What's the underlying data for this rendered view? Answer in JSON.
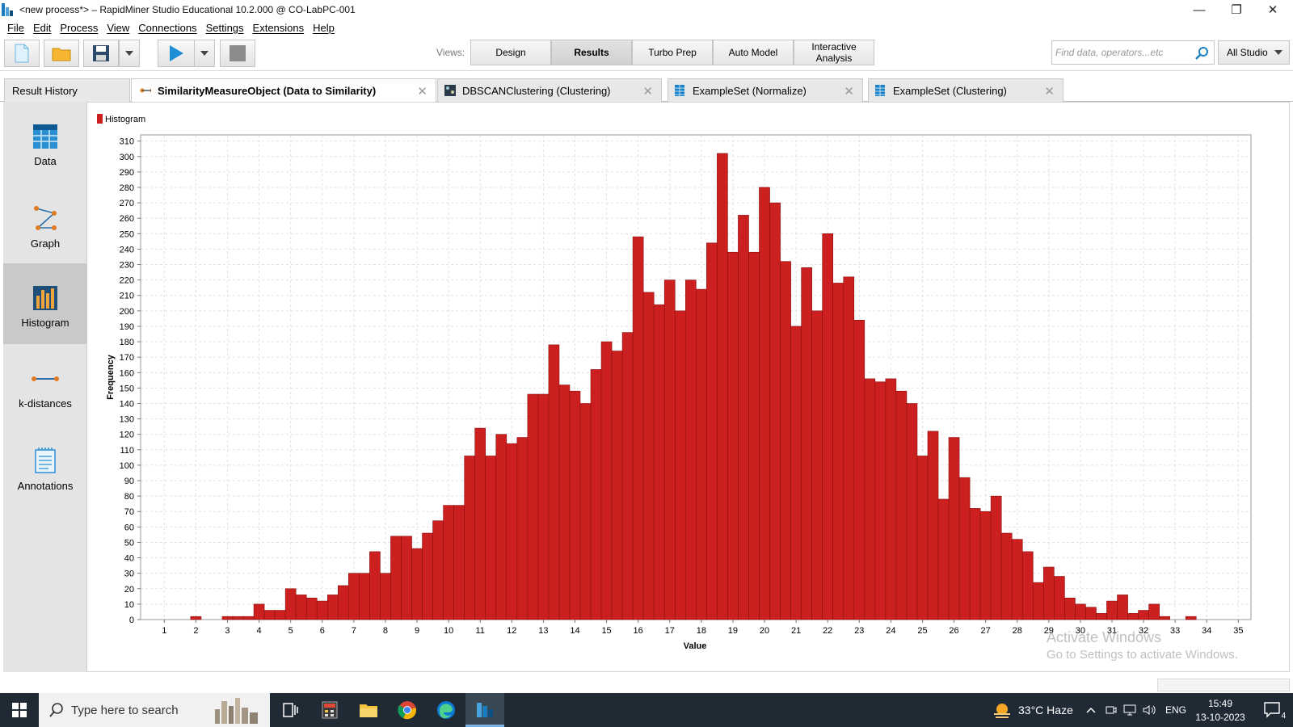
{
  "window": {
    "title": "<new process*> – RapidMiner Studio Educational 10.2.000 @ CO-LabPC-001",
    "minimize": "—",
    "maximize": "❐",
    "close": "✕"
  },
  "menu": [
    "File",
    "Edit",
    "Process",
    "View",
    "Connections",
    "Settings",
    "Extensions",
    "Help"
  ],
  "toolbar": {
    "views_label": "Views:",
    "views": [
      "Design",
      "Results",
      "Turbo Prep",
      "Auto Model",
      "Interactive Analysis"
    ],
    "active_view": "Results",
    "search_placeholder": "Find data, operators...etc",
    "studio_dropdown": "All Studio"
  },
  "tabs": [
    {
      "label": "Result History",
      "active": false,
      "icon": "none"
    },
    {
      "label": "SimilarityMeasureObject (Data to Similarity)",
      "active": true,
      "icon": "similarity-icon"
    },
    {
      "label": "DBSCANClustering (Clustering)",
      "active": false,
      "icon": "clustering-icon"
    },
    {
      "label": "ExampleSet (Normalize)",
      "active": false,
      "icon": "table-icon"
    },
    {
      "label": "ExampleSet (Clustering)",
      "active": false,
      "icon": "table-icon"
    }
  ],
  "side_panel": [
    {
      "label": "Data",
      "icon": "table-icon"
    },
    {
      "label": "Graph",
      "icon": "graph-icon"
    },
    {
      "label": "Histogram",
      "icon": "histogram-icon",
      "active": true
    },
    {
      "label": "k-distances",
      "icon": "k-distances-icon"
    },
    {
      "label": "Annotations",
      "icon": "annotations-icon"
    }
  ],
  "chart_data": {
    "type": "bar",
    "legend": "Histogram",
    "legend_position": "top-left",
    "xlabel": "Value",
    "ylabel": "Frequency",
    "xlim": [
      0.25,
      35.4
    ],
    "ylim": [
      0,
      314
    ],
    "y_ticks": [
      0,
      10,
      20,
      30,
      40,
      50,
      60,
      70,
      80,
      90,
      100,
      110,
      120,
      130,
      140,
      150,
      160,
      170,
      180,
      190,
      200,
      210,
      220,
      230,
      240,
      250,
      260,
      270,
      280,
      290,
      300,
      310
    ],
    "x_ticks": [
      1,
      2,
      3,
      4,
      5,
      6,
      7,
      8,
      9,
      10,
      11,
      12,
      13,
      14,
      15,
      16,
      17,
      18,
      19,
      20,
      21,
      22,
      23,
      24,
      25,
      26,
      27,
      28,
      29,
      30,
      31,
      32,
      33,
      34,
      35
    ],
    "grid": true,
    "color": "#cc1f1f",
    "bin_width": 0.3333,
    "bin_starts": [
      1.833,
      2.833,
      3.167,
      3.5,
      3.833,
      4.167,
      4.5,
      4.833,
      5.167,
      5.5,
      5.833,
      6.167,
      6.5,
      6.833,
      7.167,
      7.5,
      7.833,
      8.167,
      8.5,
      8.833,
      9.167,
      9.5,
      9.833,
      10.167,
      10.5,
      10.833,
      11.167,
      11.5,
      11.833,
      12.167,
      12.5,
      12.833,
      13.167,
      13.5,
      13.833,
      14.167,
      14.5,
      14.833,
      15.167,
      15.5,
      15.833,
      16.167,
      16.5,
      16.833,
      17.167,
      17.5,
      17.833,
      18.167,
      18.5,
      18.833,
      19.167,
      19.5,
      19.833,
      20.167,
      20.5,
      20.833,
      21.167,
      21.5,
      21.833,
      22.167,
      22.5,
      22.833,
      23.167,
      23.5,
      23.833,
      24.167,
      24.5,
      24.833,
      25.167,
      25.5,
      25.833,
      26.167,
      26.5,
      26.833,
      27.167,
      27.5,
      27.833,
      28.167,
      28.5,
      28.833,
      29.167,
      29.5,
      29.833,
      30.167,
      30.5,
      30.833,
      31.167,
      31.5,
      31.833,
      32.167,
      32.5,
      33.333
    ],
    "values": [
      2,
      2,
      2,
      2,
      10,
      6,
      6,
      20,
      16,
      14,
      12,
      16,
      22,
      30,
      30,
      44,
      30,
      54,
      54,
      46,
      56,
      64,
      74,
      74,
      106,
      124,
      106,
      120,
      114,
      118,
      146,
      146,
      178,
      152,
      148,
      140,
      162,
      180,
      174,
      186,
      248,
      212,
      204,
      220,
      200,
      220,
      214,
      244,
      302,
      238,
      262,
      238,
      280,
      270,
      232,
      190,
      228,
      200,
      250,
      218,
      222,
      194,
      156,
      154,
      156,
      148,
      140,
      106,
      122,
      78,
      118,
      92,
      72,
      70,
      80,
      56,
      52,
      44,
      24,
      34,
      28,
      14,
      10,
      8,
      4,
      12,
      16,
      4,
      6,
      10,
      2,
      2,
      2
    ]
  },
  "watermark": {
    "line1": "Activate Windows",
    "line2": "Go to Settings to activate Windows."
  },
  "taskbar": {
    "search_placeholder": "Type here to search",
    "weather": "33°C  Haze",
    "language": "ENG",
    "time": "15:49",
    "date": "13-10-2023",
    "notification_count": "4"
  }
}
